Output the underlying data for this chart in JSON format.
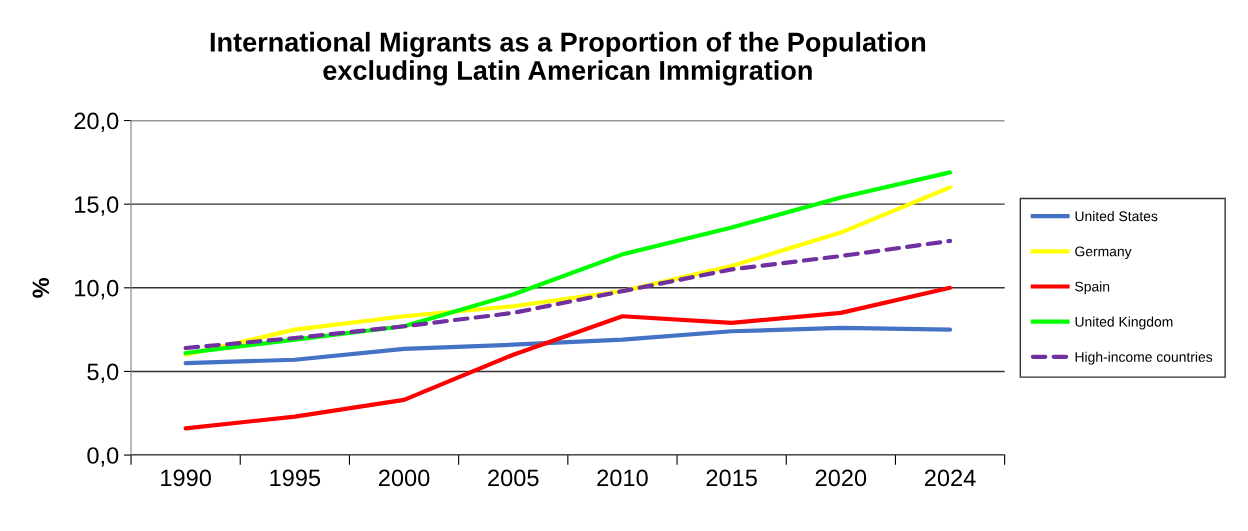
{
  "chart_data": {
    "type": "line",
    "title": "International Migrants as a Proportion of the Population\nexcluding Latin American Immigration",
    "ylabel": "%",
    "categories": [
      "1990",
      "1995",
      "2000",
      "2005",
      "2010",
      "2015",
      "2020",
      "2024"
    ],
    "series": [
      {
        "name": "United States",
        "color": "#4472c4",
        "values": [
          5.5,
          5.7,
          6.35,
          6.6,
          6.9,
          7.4,
          7.6,
          7.5
        ]
      },
      {
        "name": "Germany",
        "color": "#ffff00",
        "values": [
          6.0,
          7.5,
          8.3,
          8.9,
          9.8,
          11.3,
          13.3,
          16.0
        ]
      },
      {
        "name": "Spain",
        "color": "#ff0000",
        "values": [
          1.6,
          2.3,
          3.3,
          6.0,
          8.3,
          7.9,
          8.5,
          10.0
        ]
      },
      {
        "name": "United Kingdom",
        "color": "#00ff00",
        "values": [
          6.1,
          6.9,
          7.7,
          9.6,
          12.0,
          13.6,
          15.4,
          16.9
        ]
      },
      {
        "name": "High-income countries",
        "color": "#7030a0",
        "line_style": "dashed",
        "values": [
          6.4,
          7.0,
          7.7,
          8.5,
          9.8,
          11.1,
          11.9,
          12.8
        ]
      }
    ],
    "ylim": [
      0,
      20
    ],
    "yticks": [
      {
        "value": 0,
        "label": "0,0"
      },
      {
        "value": 5,
        "label": "5,0"
      },
      {
        "value": 10,
        "label": "10,0"
      },
      {
        "value": 15,
        "label": "15,0"
      },
      {
        "value": 20,
        "label": "20,0"
      }
    ],
    "grid": "y",
    "legend": "right",
    "marker": "none",
    "line_style": "solid"
  }
}
